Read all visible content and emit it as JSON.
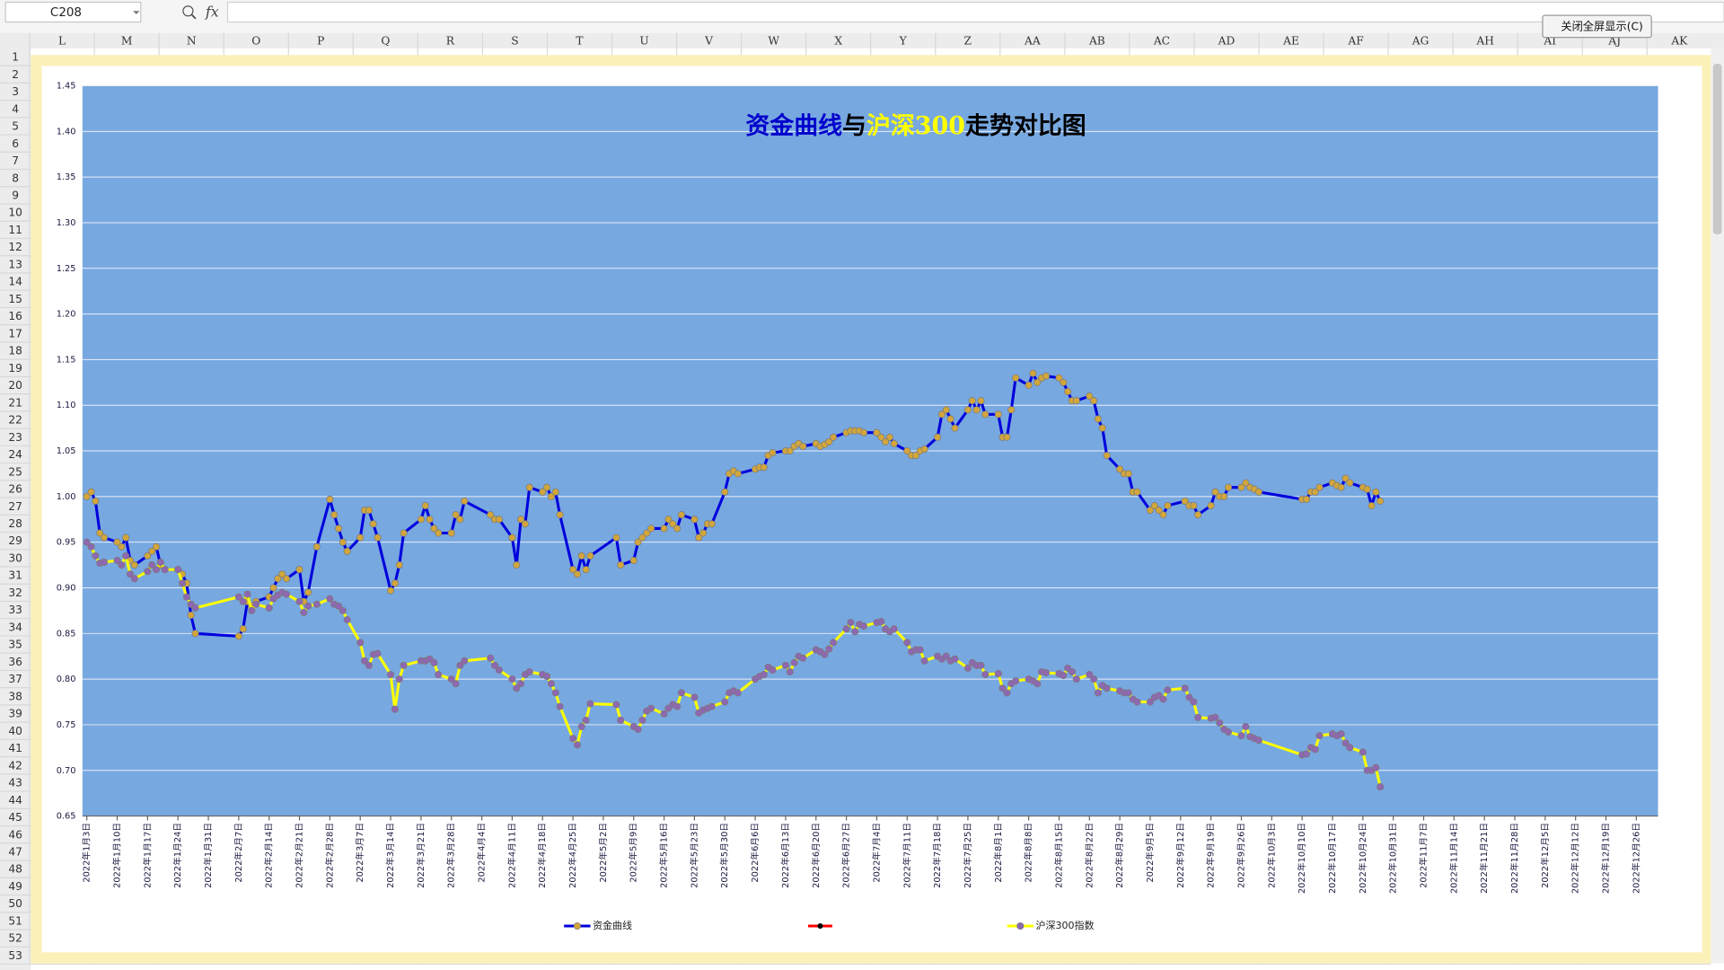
{
  "ui": {
    "name_box": "C208",
    "fx": "fx",
    "button": "关闭全屏显示(C)",
    "columns": [
      "L",
      "M",
      "N",
      "O",
      "P",
      "Q",
      "R",
      "S",
      "T",
      "U",
      "V",
      "W",
      "X",
      "Y",
      "Z",
      "AA",
      "AB",
      "AC",
      "AD",
      "AE",
      "AF",
      "AG",
      "AH",
      "AI",
      "AJ",
      "AK"
    ],
    "rows": [
      1,
      2,
      3,
      4,
      5,
      6,
      7,
      8,
      9,
      10,
      11,
      12,
      13,
      14,
      15,
      16,
      17,
      18,
      19,
      20,
      21,
      22,
      23,
      24,
      25,
      26,
      27,
      28,
      29,
      30,
      31,
      32,
      33,
      34,
      35,
      36,
      37,
      38,
      39,
      40,
      41,
      42,
      43,
      44,
      45,
      46,
      47,
      48,
      49,
      50,
      51,
      52,
      53
    ]
  },
  "chart_data": {
    "type": "line",
    "title_parts": [
      {
        "text": "资金曲线",
        "color": "#0000cc"
      },
      {
        "text": "与",
        "color": "#000000"
      },
      {
        "text": "沪深300",
        "color": "#ffff00"
      },
      {
        "text": "走势对比图",
        "color": "#000000"
      }
    ],
    "plot_color": "#78a8e0",
    "grid": true,
    "x": [
      "2022-01-03",
      "2022-01-04",
      "2022-01-05",
      "2022-01-06",
      "2022-01-07",
      "2022-01-10",
      "2022-01-11",
      "2022-01-12",
      "2022-01-13",
      "2022-01-14",
      "2022-01-17",
      "2022-01-18",
      "2022-01-19",
      "2022-01-20",
      "2022-01-21",
      "2022-01-24",
      "2022-01-25",
      "2022-01-26",
      "2022-01-27",
      "2022-01-28",
      "2022-02-07",
      "2022-02-08",
      "2022-02-09",
      "2022-02-10",
      "2022-02-11",
      "2022-02-14",
      "2022-02-15",
      "2022-02-16",
      "2022-02-17",
      "2022-02-18",
      "2022-02-21",
      "2022-02-22",
      "2022-02-23",
      "2022-02-25",
      "2022-02-28",
      "2022-03-01",
      "2022-03-02",
      "2022-03-03",
      "2022-03-04",
      "2022-03-07",
      "2022-03-08",
      "2022-03-09",
      "2022-03-10",
      "2022-03-11",
      "2022-03-14",
      "2022-03-15",
      "2022-03-16",
      "2022-03-17",
      "2022-03-21",
      "2022-03-22",
      "2022-03-23",
      "2022-03-24",
      "2022-03-25",
      "2022-03-28",
      "2022-03-29",
      "2022-03-30",
      "2022-03-31",
      "2022-04-06",
      "2022-04-07",
      "2022-04-08",
      "2022-04-11",
      "2022-04-12",
      "2022-04-13",
      "2022-04-14",
      "2022-04-15",
      "2022-04-18",
      "2022-04-19",
      "2022-04-20",
      "2022-04-21",
      "2022-04-22",
      "2022-04-25",
      "2022-04-26",
      "2022-04-27",
      "2022-04-28",
      "2022-04-29",
      "2022-05-05",
      "2022-05-06",
      "2022-05-09",
      "2022-05-10",
      "2022-05-11",
      "2022-05-12",
      "2022-05-13",
      "2022-05-16",
      "2022-05-17",
      "2022-05-18",
      "2022-05-19",
      "2022-05-20",
      "2022-05-23",
      "2022-05-24",
      "2022-05-25",
      "2022-05-26",
      "2022-05-27",
      "2022-05-30",
      "2022-05-31",
      "2022-06-01",
      "2022-06-02",
      "2022-06-06",
      "2022-06-07",
      "2022-06-08",
      "2022-06-09",
      "2022-06-10",
      "2022-06-13",
      "2022-06-14",
      "2022-06-15",
      "2022-06-16",
      "2022-06-17",
      "2022-06-20",
      "2022-06-21",
      "2022-06-22",
      "2022-06-23",
      "2022-06-24",
      "2022-06-27",
      "2022-06-28",
      "2022-06-29",
      "2022-06-30",
      "2022-07-01",
      "2022-07-04",
      "2022-07-05",
      "2022-07-06",
      "2022-07-07",
      "2022-07-08",
      "2022-07-11",
      "2022-07-12",
      "2022-07-13",
      "2022-07-14",
      "2022-07-15",
      "2022-07-18",
      "2022-07-19",
      "2022-07-20",
      "2022-07-21",
      "2022-07-22",
      "2022-07-25",
      "2022-07-26",
      "2022-07-27",
      "2022-07-28",
      "2022-07-29",
      "2022-08-01",
      "2022-08-02",
      "2022-08-03",
      "2022-08-04",
      "2022-08-05",
      "2022-08-08",
      "2022-08-09",
      "2022-08-10",
      "2022-08-11",
      "2022-08-12",
      "2022-08-15",
      "2022-08-16",
      "2022-08-17",
      "2022-08-18",
      "2022-08-19",
      "2022-08-22",
      "2022-08-23",
      "2022-08-24",
      "2022-08-25",
      "2022-08-26",
      "2022-08-29",
      "2022-08-30",
      "2022-08-31",
      "2022-09-01",
      "2022-09-02",
      "2022-09-05",
      "2022-09-06",
      "2022-09-07",
      "2022-09-08",
      "2022-09-09",
      "2022-09-13",
      "2022-09-14",
      "2022-09-15",
      "2022-09-16",
      "2022-09-19",
      "2022-09-20",
      "2022-09-21",
      "2022-09-22",
      "2022-09-23",
      "2022-09-26",
      "2022-09-27",
      "2022-09-28",
      "2022-09-29",
      "2022-09-30",
      "2022-10-10",
      "2022-10-11",
      "2022-10-12",
      "2022-10-13",
      "2022-10-14",
      "2022-10-17",
      "2022-10-18",
      "2022-10-19",
      "2022-10-20",
      "2022-10-21",
      "2022-10-24",
      "2022-10-25",
      "2022-10-26",
      "2022-10-27",
      "2022-10-28"
    ],
    "series": [
      {
        "name": "资金曲线",
        "color": "#0000dd",
        "marker_color": "#d2a63c",
        "values": [
          1.0,
          1.005,
          0.995,
          0.96,
          0.955,
          0.95,
          0.945,
          0.955,
          0.93,
          0.925,
          0.935,
          0.94,
          0.945,
          0.925,
          0.92,
          0.92,
          0.915,
          0.905,
          0.87,
          0.85,
          0.847,
          0.855,
          0.885,
          0.88,
          0.885,
          0.89,
          0.9,
          0.91,
          0.915,
          0.91,
          0.92,
          0.885,
          0.895,
          0.945,
          0.997,
          0.98,
          0.965,
          0.95,
          0.94,
          0.955,
          0.985,
          0.985,
          0.97,
          0.955,
          0.897,
          0.905,
          0.925,
          0.96,
          0.975,
          0.99,
          0.975,
          0.965,
          0.96,
          0.96,
          0.98,
          0.975,
          0.995,
          0.98,
          0.975,
          0.975,
          0.955,
          0.925,
          0.975,
          0.97,
          1.01,
          1.005,
          1.01,
          1.0,
          1.005,
          0.98,
          0.92,
          0.915,
          0.935,
          0.92,
          0.935,
          0.955,
          0.925,
          0.93,
          0.95,
          0.955,
          0.96,
          0.965,
          0.965,
          0.975,
          0.97,
          0.965,
          0.98,
          0.975,
          0.955,
          0.96,
          0.97,
          0.97,
          1.005,
          1.025,
          1.028,
          1.025,
          1.03,
          1.032,
          1.032,
          1.045,
          1.048,
          1.05,
          1.05,
          1.055,
          1.058,
          1.055,
          1.058,
          1.055,
          1.057,
          1.06,
          1.065,
          1.07,
          1.072,
          1.072,
          1.072,
          1.07,
          1.07,
          1.065,
          1.06,
          1.065,
          1.058,
          1.05,
          1.045,
          1.045,
          1.05,
          1.052,
          1.065,
          1.09,
          1.095,
          1.085,
          1.075,
          1.095,
          1.105,
          1.095,
          1.105,
          1.09,
          1.09,
          1.065,
          1.065,
          1.095,
          1.13,
          1.122,
          1.135,
          1.125,
          1.13,
          1.132,
          1.13,
          1.125,
          1.115,
          1.105,
          1.105,
          1.11,
          1.105,
          1.085,
          1.075,
          1.045,
          1.03,
          1.025,
          1.025,
          1.005,
          1.005,
          0.985,
          0.99,
          0.985,
          0.98,
          0.99,
          0.995,
          0.99,
          0.99,
          0.98,
          0.99,
          1.005,
          1.0,
          1.0,
          1.01,
          1.01,
          1.015,
          1.01,
          1.008,
          1.005,
          0.997,
          0.997,
          1.005,
          1.005,
          1.01,
          1.015,
          1.012,
          1.01,
          1.02,
          1.015,
          1.01,
          1.008,
          0.99,
          1.005,
          0.995
        ]
      },
      {
        "name": "沪深300指数",
        "color": "#ffff00",
        "marker_color": "#8e68b0",
        "values": [
          0.95,
          0.945,
          0.935,
          0.927,
          0.928,
          0.93,
          0.925,
          0.935,
          0.915,
          0.91,
          0.918,
          0.925,
          0.92,
          0.928,
          0.92,
          0.92,
          0.905,
          0.89,
          0.882,
          0.878,
          0.89,
          0.885,
          0.893,
          0.875,
          0.882,
          0.878,
          0.888,
          0.892,
          0.895,
          0.893,
          0.885,
          0.873,
          0.88,
          0.882,
          0.888,
          0.882,
          0.88,
          0.875,
          0.865,
          0.84,
          0.82,
          0.815,
          0.827,
          0.828,
          0.805,
          0.767,
          0.8,
          0.815,
          0.82,
          0.82,
          0.822,
          0.818,
          0.805,
          0.8,
          0.795,
          0.815,
          0.82,
          0.823,
          0.815,
          0.81,
          0.8,
          0.79,
          0.795,
          0.805,
          0.808,
          0.805,
          0.803,
          0.795,
          0.785,
          0.77,
          0.735,
          0.728,
          0.748,
          0.755,
          0.773,
          0.772,
          0.755,
          0.748,
          0.745,
          0.755,
          0.765,
          0.768,
          0.762,
          0.768,
          0.772,
          0.77,
          0.785,
          0.78,
          0.763,
          0.766,
          0.768,
          0.77,
          0.775,
          0.785,
          0.787,
          0.785,
          0.8,
          0.803,
          0.805,
          0.813,
          0.81,
          0.815,
          0.808,
          0.818,
          0.825,
          0.823,
          0.832,
          0.83,
          0.827,
          0.833,
          0.84,
          0.855,
          0.862,
          0.852,
          0.86,
          0.858,
          0.862,
          0.863,
          0.855,
          0.852,
          0.855,
          0.84,
          0.83,
          0.832,
          0.832,
          0.82,
          0.825,
          0.822,
          0.825,
          0.82,
          0.822,
          0.812,
          0.818,
          0.815,
          0.815,
          0.805,
          0.806,
          0.79,
          0.785,
          0.795,
          0.798,
          0.8,
          0.798,
          0.795,
          0.808,
          0.807,
          0.806,
          0.804,
          0.812,
          0.808,
          0.8,
          0.805,
          0.8,
          0.785,
          0.793,
          0.79,
          0.787,
          0.785,
          0.785,
          0.778,
          0.775,
          0.775,
          0.78,
          0.782,
          0.778,
          0.788,
          0.79,
          0.78,
          0.775,
          0.758,
          0.757,
          0.758,
          0.752,
          0.745,
          0.742,
          0.738,
          0.748,
          0.737,
          0.735,
          0.733,
          0.717,
          0.718,
          0.725,
          0.723,
          0.738,
          0.74,
          0.738,
          0.74,
          0.73,
          0.725,
          0.72,
          0.7,
          0.7,
          0.703,
          0.682
        ]
      }
    ],
    "xlim": [
      "2022-01-02",
      "2022-12-31"
    ],
    "xticks": [
      {
        "value": "2022-01-03",
        "label": "2022年1月3日"
      },
      {
        "value": "2022-01-10",
        "label": "2022年1月10日"
      },
      {
        "value": "2022-01-17",
        "label": "2022年1月17日"
      },
      {
        "value": "2022-01-24",
        "label": "2022年1月24日"
      },
      {
        "value": "2022-01-31",
        "label": "2022年1月31日"
      },
      {
        "value": "2022-02-07",
        "label": "2022年2月7日"
      },
      {
        "value": "2022-02-14",
        "label": "2022年2月14日"
      },
      {
        "value": "2022-02-21",
        "label": "2022年2月21日"
      },
      {
        "value": "2022-02-28",
        "label": "2022年2月28日"
      },
      {
        "value": "2022-03-07",
        "label": "2022年3月7日"
      },
      {
        "value": "2022-03-14",
        "label": "2022年3月14日"
      },
      {
        "value": "2022-03-21",
        "label": "2022年3月21日"
      },
      {
        "value": "2022-03-28",
        "label": "2022年3月28日"
      },
      {
        "value": "2022-04-04",
        "label": "2022年4月4日"
      },
      {
        "value": "2022-04-11",
        "label": "2022年4月11日"
      },
      {
        "value": "2022-04-18",
        "label": "2022年4月18日"
      },
      {
        "value": "2022-04-25",
        "label": "2022年4月25日"
      },
      {
        "value": "2022-05-02",
        "label": "2022年5月2日"
      },
      {
        "value": "2022-05-09",
        "label": "2022年5月9日"
      },
      {
        "value": "2022-05-16",
        "label": "2022年5月16日"
      },
      {
        "value": "2022-05-23",
        "label": "2022年5月23日"
      },
      {
        "value": "2022-05-30",
        "label": "2022年5月30日"
      },
      {
        "value": "2022-06-06",
        "label": "2022年6月6日"
      },
      {
        "value": "2022-06-13",
        "label": "2022年6月13日"
      },
      {
        "value": "2022-06-20",
        "label": "2022年6月20日"
      },
      {
        "value": "2022-06-27",
        "label": "2022年6月27日"
      },
      {
        "value": "2022-07-04",
        "label": "2022年7月4日"
      },
      {
        "value": "2022-07-11",
        "label": "2022年7月11日"
      },
      {
        "value": "2022-07-18",
        "label": "2022年7月18日"
      },
      {
        "value": "2022-07-25",
        "label": "2022年7月25日"
      },
      {
        "value": "2022-08-01",
        "label": "2022年8月1日"
      },
      {
        "value": "2022-08-08",
        "label": "2022年8月8日"
      },
      {
        "value": "2022-08-15",
        "label": "2022年8月15日"
      },
      {
        "value": "2022-08-22",
        "label": "2022年8月22日"
      },
      {
        "value": "2022-08-29",
        "label": "2022年8月29日"
      },
      {
        "value": "2022-09-05",
        "label": "2022年9月5日"
      },
      {
        "value": "2022-09-12",
        "label": "2022年9月12日"
      },
      {
        "value": "2022-09-19",
        "label": "2022年9月19日"
      },
      {
        "value": "2022-09-26",
        "label": "2022年9月26日"
      },
      {
        "value": "2022-10-03",
        "label": "2022年10月3日"
      },
      {
        "value": "2022-10-10",
        "label": "2022年10月10日"
      },
      {
        "value": "2022-10-17",
        "label": "2022年10月17日"
      },
      {
        "value": "2022-10-24",
        "label": "2022年10月24日"
      },
      {
        "value": "2022-10-31",
        "label": "2022年10月31日"
      },
      {
        "value": "2022-11-07",
        "label": "2022年11月7日"
      },
      {
        "value": "2022-11-14",
        "label": "2022年11月14日"
      },
      {
        "value": "2022-11-21",
        "label": "2022年11月21日"
      },
      {
        "value": "2022-11-28",
        "label": "2022年11月28日"
      },
      {
        "value": "2022-12-05",
        "label": "2022年12月5日"
      },
      {
        "value": "2022-12-12",
        "label": "2022年12月12日"
      },
      {
        "value": "2022-12-19",
        "label": "2022年12月19日"
      },
      {
        "value": "2022-12-26",
        "label": "2022年12月26日"
      }
    ],
    "ylim": [
      0.65,
      1.45
    ],
    "yticks": [
      0.65,
      {
        "value": 0.7,
        "label": "0.70"
      },
      0.75,
      {
        "value": 0.8,
        "label": "0.80"
      },
      0.85,
      {
        "value": 0.9,
        "label": "0.90"
      },
      0.95,
      {
        "value": 1.0,
        "label": "1.00"
      },
      1.05,
      {
        "value": 1.1,
        "label": "1.10"
      },
      1.15,
      {
        "value": 1.2,
        "label": "1.20"
      },
      1.25,
      {
        "value": 1.3,
        "label": "1.30"
      },
      1.35,
      {
        "value": 1.4,
        "label": "1.40"
      },
      1.45
    ]
  }
}
